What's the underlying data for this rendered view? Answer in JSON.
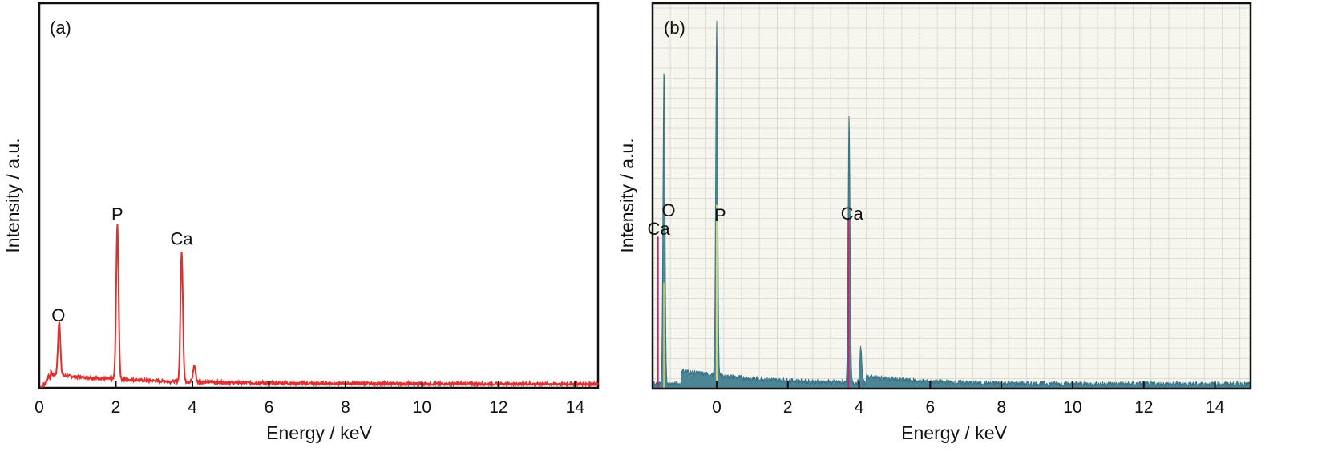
{
  "chart_data": [
    {
      "type": "line",
      "panel_label": "(a)",
      "xlabel": "Energy / keV",
      "ylabel": "Intensity / a.u.",
      "xlim": [
        0,
        14.6
      ],
      "ylim": [
        0,
        100
      ],
      "xticks": [
        0,
        2,
        4,
        6,
        8,
        10,
        12,
        14
      ],
      "yticks_shown": false,
      "grid": false,
      "line_color": "#e03030",
      "baseline": 1.0,
      "peaks": [
        {
          "label": "O",
          "x": 0.52,
          "y": 14.8
        },
        {
          "label": "P",
          "x": 2.04,
          "y": 41.0
        },
        {
          "label": "Ca",
          "x": 3.72,
          "y": 34.7
        },
        {
          "label": "",
          "x": 4.05,
          "y": 5.3
        }
      ],
      "annotations": [
        {
          "text": "O",
          "x": 0.5
        },
        {
          "text": "P",
          "x": 2.04
        },
        {
          "text": "Ca",
          "x": 3.72
        }
      ]
    },
    {
      "type": "area",
      "panel_label": "(b)",
      "xlabel": "Energy / keV",
      "ylabel": "Intensity / a.u.",
      "xlim": [
        -1.8,
        15.0
      ],
      "ylim": [
        0,
        100
      ],
      "xticks": [
        0,
        2,
        4,
        6,
        8,
        10,
        12,
        14
      ],
      "yticks_shown": false,
      "grid": true,
      "fill_color": "#4c8596",
      "line_color": "#3b7486",
      "background": "#f7f6ee",
      "grid_color": "#dcdcd4",
      "peaks": [
        {
          "label": "O",
          "x": -1.48,
          "y": 90.0
        },
        {
          "label": "P",
          "x": 0.0,
          "y": 100.0
        },
        {
          "label": "Ca",
          "x": 3.72,
          "y": 75.0
        },
        {
          "label": "",
          "x": 4.05,
          "y": 10.2
        }
      ],
      "marker_lines": [
        {
          "element": "Ca",
          "x": -1.65,
          "color": "#b0306a",
          "y": 43
        },
        {
          "element": "O",
          "x": -1.48,
          "color": "#d8c04a",
          "y": 30
        },
        {
          "element": "P",
          "x": 0.0,
          "color": "#e6d35a",
          "y": 52
        },
        {
          "element": "Ca",
          "x": 3.7,
          "color": "#b0306a",
          "y": 48
        }
      ],
      "annotations": [
        {
          "text": "O",
          "x": -1.35
        },
        {
          "text": "Ca",
          "x": -1.63
        },
        {
          "text": "P",
          "x": 0.1
        },
        {
          "text": "Ca",
          "x": 3.8
        }
      ]
    }
  ]
}
